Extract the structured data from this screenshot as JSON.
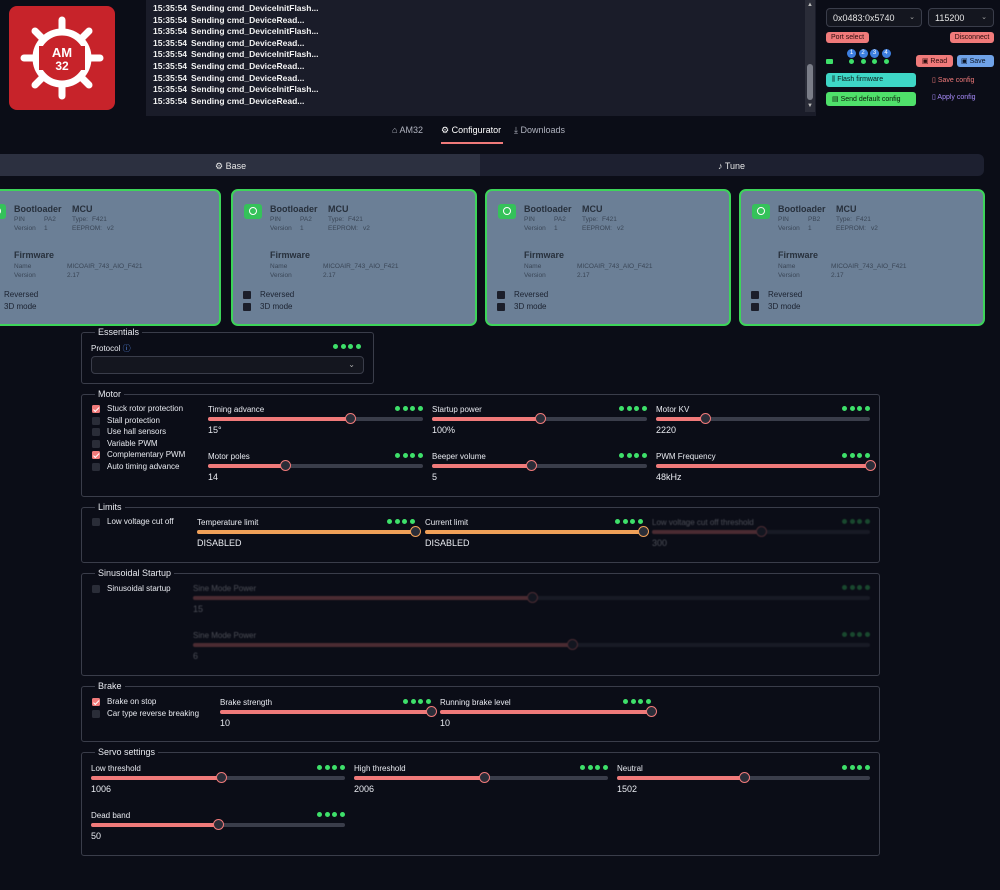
{
  "logo": {
    "text": "AM\n32"
  },
  "log": {
    "lines": [
      {
        "time": "15:35:54",
        "msg": "Sending cmd_DeviceInitFlash..."
      },
      {
        "time": "15:35:54",
        "msg": "Sending cmd_DeviceRead..."
      },
      {
        "time": "15:35:54",
        "msg": "Sending cmd_DeviceInitFlash..."
      },
      {
        "time": "15:35:54",
        "msg": "Sending cmd_DeviceRead..."
      },
      {
        "time": "15:35:54",
        "msg": "Sending cmd_DeviceInitFlash..."
      },
      {
        "time": "15:35:54",
        "msg": "Sending cmd_DeviceRead..."
      },
      {
        "time": "15:35:54",
        "msg": "Sending cmd_DeviceRead..."
      },
      {
        "time": "15:35:54",
        "msg": "Sending cmd_DeviceInitFlash..."
      },
      {
        "time": "15:35:54",
        "msg": "Sending cmd_DeviceRead..."
      }
    ]
  },
  "connection": {
    "port": "0x0483:0x5740",
    "baud": "115200",
    "port_select": "Port select",
    "disconnect": "Disconnect",
    "motor_badges": [
      "1",
      "2",
      "3",
      "4"
    ],
    "read": "Read",
    "save": "Save",
    "flash_firmware": "Flash firmware",
    "save_config": "Save config",
    "send_default": "Send default config",
    "apply_config": "Apply config"
  },
  "nav": {
    "tabs": [
      {
        "label": "AM32",
        "icon": "home-icon"
      },
      {
        "label": "Configurator",
        "icon": "cpu-icon"
      },
      {
        "label": "Downloads",
        "icon": "download-icon"
      }
    ],
    "active": 1
  },
  "subtabs": [
    {
      "label": "Base",
      "icon": "gear-icon"
    },
    {
      "label": "Tune",
      "icon": "music-note-icon"
    }
  ],
  "escs": [
    {
      "bootloader": "Bootloader",
      "mcu": "MCU",
      "pin_label": "PIN",
      "pin": "PA2",
      "type_label": "Type:",
      "type": "F421",
      "version_label": "Version",
      "version": "1",
      "eeprom_label": "EEPROM:",
      "eeprom": "v2",
      "firmware": "Firmware",
      "name_label": "Name",
      "name": "MICOAIR_743_AIO_F421",
      "fw_version_label": "Version",
      "fw_version": "2.17",
      "reversed": "Reversed",
      "mode3d": "3D mode"
    },
    {
      "bootloader": "Bootloader",
      "mcu": "MCU",
      "pin_label": "PIN",
      "pin": "PA2",
      "type_label": "Type:",
      "type": "F421",
      "version_label": "Version",
      "version": "1",
      "eeprom_label": "EEPROM:",
      "eeprom": "v2",
      "firmware": "Firmware",
      "name_label": "Name",
      "name": "MICOAIR_743_AIO_F421",
      "fw_version_label": "Version",
      "fw_version": "2.17",
      "reversed": "Reversed",
      "mode3d": "3D mode"
    },
    {
      "bootloader": "Bootloader",
      "mcu": "MCU",
      "pin_label": "PIN",
      "pin": "PA2",
      "type_label": "Type:",
      "type": "F421",
      "version_label": "Version",
      "version": "1",
      "eeprom_label": "EEPROM:",
      "eeprom": "v2",
      "firmware": "Firmware",
      "name_label": "Name",
      "name": "MICOAIR_743_AIO_F421",
      "fw_version_label": "Version",
      "fw_version": "2.17",
      "reversed": "Reversed",
      "mode3d": "3D mode"
    },
    {
      "bootloader": "Bootloader",
      "mcu": "MCU",
      "pin_label": "PIN",
      "pin": "PB2",
      "type_label": "Type:",
      "type": "F421",
      "version_label": "Version",
      "version": "1",
      "eeprom_label": "EEPROM:",
      "eeprom": "v2",
      "firmware": "Firmware",
      "name_label": "Name",
      "name": "MICOAIR_743_AIO_F421",
      "fw_version_label": "Version",
      "fw_version": "2.17",
      "reversed": "Reversed",
      "mode3d": "3D mode"
    }
  ],
  "essentials": {
    "legend": "Essentials",
    "protocol_label": "Protocol",
    "protocol_value": ""
  },
  "motor": {
    "legend": "Motor",
    "checkboxes": [
      {
        "label": "Stuck rotor protection",
        "checked": true
      },
      {
        "label": "Stall protection",
        "checked": false
      },
      {
        "label": "Use hall sensors",
        "checked": false
      },
      {
        "label": "Variable PWM",
        "checked": false
      },
      {
        "label": "Complementary PWM",
        "checked": true
      },
      {
        "label": "Auto timing advance",
        "checked": false
      }
    ],
    "sliders": [
      {
        "label": "Timing advance",
        "value": "15°",
        "fraction": 0.66
      },
      {
        "label": "Startup power",
        "value": "100%",
        "fraction": 0.5
      },
      {
        "label": "Motor KV",
        "value": "2220",
        "fraction": 0.23
      },
      {
        "label": "Motor poles",
        "value": "14",
        "fraction": 0.36
      },
      {
        "label": "Beeper volume",
        "value": "5",
        "fraction": 0.46
      },
      {
        "label": "PWM Frequency",
        "value": "48kHz",
        "fraction": 1.0
      }
    ]
  },
  "limits": {
    "legend": "Limits",
    "checkbox": "Low voltage cut off",
    "sliders": [
      {
        "label": "Temperature limit",
        "value": "DISABLED",
        "fraction": 1.0
      },
      {
        "label": "Current limit",
        "value": "DISABLED",
        "fraction": 1.0
      },
      {
        "label": "Low voltage cut off threshold",
        "value": "300",
        "fraction": 0.5
      }
    ]
  },
  "sinusoidal": {
    "legend": "Sinusoidal Startup",
    "checkbox": "Sinusoidal startup",
    "sliders": [
      {
        "label": "Sine Mode Power",
        "value": "15",
        "fraction": 0.5
      },
      {
        "label": "Sine Mode Power",
        "value": "6",
        "fraction": 0.56
      }
    ]
  },
  "brake": {
    "legend": "Brake",
    "checkboxes": [
      {
        "label": "Brake on stop",
        "checked": true
      },
      {
        "label": "Car type reverse breaking",
        "checked": false
      }
    ],
    "sliders": [
      {
        "label": "Brake strength",
        "value": "10",
        "fraction": 1.0
      },
      {
        "label": "Running brake level",
        "value": "10",
        "fraction": 1.0
      }
    ]
  },
  "servo": {
    "legend": "Servo settings",
    "sliders": [
      {
        "label": "Low threshold",
        "value": "1006",
        "fraction": 0.51
      },
      {
        "label": "High threshold",
        "value": "2006",
        "fraction": 0.51
      },
      {
        "label": "Neutral",
        "value": "1502",
        "fraction": 0.5
      },
      {
        "label": "Dead band",
        "value": "50",
        "fraction": 0.5
      }
    ]
  },
  "colors": {
    "accent": "#f07a7a",
    "orange": "#f0a058",
    "green": "#3ee06a",
    "card": "#6b7f96"
  }
}
